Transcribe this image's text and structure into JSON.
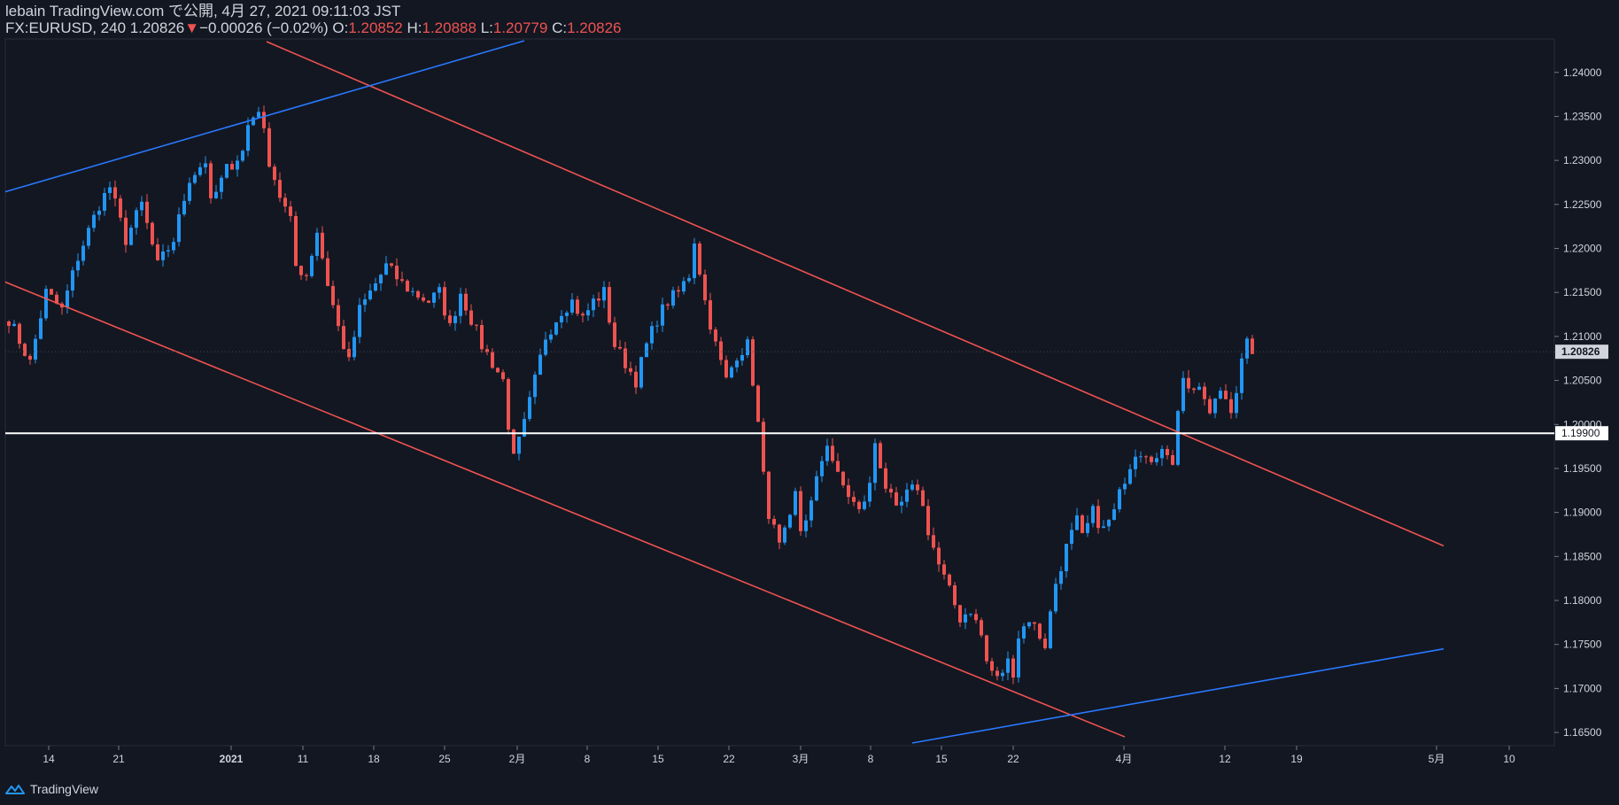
{
  "header": {
    "publish_line": "lebain TradingView.com で公開, 4月 27, 2021 09:11:03 JST",
    "symbol": "FX:EURUSD, 240",
    "last": "1.20826",
    "change_arrow": "▼",
    "change": "−0.00026 (−0.02%)",
    "o_label": "O:",
    "o_value": "1.20852",
    "h_label": "H:",
    "h_value": "1.20888",
    "l_label": "L:",
    "l_value": "1.20779",
    "c_label": "C:",
    "c_value": "1.20826"
  },
  "footer": {
    "brand": "TradingView",
    "icon": "tradingview-logo-icon"
  },
  "colors": {
    "background": "#131722",
    "up": "#2196f3",
    "down": "#ef5350",
    "channel_red": "#ef5350",
    "channel_blue": "#2962ff",
    "level": "#ffffff",
    "axis_text": "#d1d4dc",
    "last_price_label_bg": "#d1d4dc"
  },
  "chart_data": {
    "type": "candlestick",
    "symbol": "EURUSD",
    "timeframe": "240",
    "y_ticks": [
      "1.24000",
      "1.23500",
      "1.23000",
      "1.22500",
      "1.22000",
      "1.21500",
      "1.21000",
      "1.20500",
      "1.20000",
      "1.19500",
      "1.19000",
      "1.18500",
      "1.18000",
      "1.17500",
      "1.17000",
      "1.16500"
    ],
    "ylim": [
      1.1635,
      1.2438
    ],
    "x_ticks": [
      "14",
      "21",
      "2021",
      "11",
      "18",
      "25",
      "2月",
      "8",
      "15",
      "22",
      "3月",
      "8",
      "15",
      "22",
      "4月",
      "12",
      "19",
      "5月",
      "10"
    ],
    "x_tick_bold": [
      false,
      false,
      true,
      false,
      false,
      false,
      false,
      false,
      false,
      false,
      false,
      false,
      false,
      false,
      false,
      false,
      false,
      false,
      false
    ],
    "last_price_label": "1.20826",
    "horizontal_level_label": "1.19900",
    "horizontal_level": 1.199,
    "close_path": [
      [
        0,
        1.212
      ],
      [
        4,
        1.207
      ],
      [
        7,
        1.215
      ],
      [
        10,
        1.213
      ],
      [
        13,
        1.219
      ],
      [
        17,
        1.225
      ],
      [
        19,
        1.227
      ],
      [
        22,
        1.221
      ],
      [
        25,
        1.225
      ],
      [
        28,
        1.218
      ],
      [
        31,
        1.221
      ],
      [
        34,
        1.228
      ],
      [
        37,
        1.23
      ],
      [
        38,
        1.225
      ],
      [
        41,
        1.229
      ],
      [
        44,
        1.231
      ],
      [
        45,
        1.234
      ],
      [
        47,
        1.236
      ],
      [
        49,
        1.23
      ],
      [
        51,
        1.226
      ],
      [
        53,
        1.223
      ],
      [
        54,
        1.218
      ],
      [
        56,
        1.217
      ],
      [
        58,
        1.222
      ],
      [
        60,
        1.216
      ],
      [
        62,
        1.211
      ],
      [
        64,
        1.207
      ],
      [
        66,
        1.213
      ],
      [
        68,
        1.215
      ],
      [
        71,
        1.218
      ],
      [
        74,
        1.216
      ],
      [
        76,
        1.215
      ],
      [
        79,
        1.214
      ],
      [
        81,
        1.215
      ],
      [
        83,
        1.211
      ],
      [
        85,
        1.215
      ],
      [
        87,
        1.212
      ],
      [
        89,
        1.209
      ],
      [
        91,
        1.207
      ],
      [
        93,
        1.205
      ],
      [
        94,
        1.2
      ],
      [
        95,
        1.196
      ],
      [
        97,
        1.2
      ],
      [
        99,
        1.205
      ],
      [
        101,
        1.21
      ],
      [
        104,
        1.213
      ],
      [
        106,
        1.214
      ],
      [
        108,
        1.212
      ],
      [
        110,
        1.214
      ],
      [
        112,
        1.215
      ],
      [
        114,
        1.209
      ],
      [
        116,
        1.207
      ],
      [
        118,
        1.205
      ],
      [
        120,
        1.209
      ],
      [
        122,
        1.212
      ],
      [
        124,
        1.214
      ],
      [
        126,
        1.215
      ],
      [
        128,
        1.217
      ],
      [
        129,
        1.221
      ],
      [
        131,
        1.214
      ],
      [
        133,
        1.209
      ],
      [
        135,
        1.205
      ],
      [
        137,
        1.208
      ],
      [
        139,
        1.209
      ],
      [
        140,
        1.205
      ],
      [
        141,
        1.2
      ],
      [
        142,
        1.194
      ],
      [
        143,
        1.19
      ],
      [
        145,
        1.186
      ],
      [
        147,
        1.189
      ],
      [
        148,
        1.192
      ],
      [
        149,
        1.188
      ],
      [
        151,
        1.191
      ],
      [
        153,
        1.196
      ],
      [
        154,
        1.198
      ],
      [
        156,
        1.194
      ],
      [
        158,
        1.192
      ],
      [
        160,
        1.19
      ],
      [
        162,
        1.193
      ],
      [
        163,
        1.198
      ],
      [
        165,
        1.193
      ],
      [
        167,
        1.19
      ],
      [
        169,
        1.192
      ],
      [
        171,
        1.193
      ],
      [
        173,
        1.188
      ],
      [
        175,
        1.184
      ],
      [
        177,
        1.181
      ],
      [
        179,
        1.178
      ],
      [
        181,
        1.179
      ],
      [
        183,
        1.176
      ],
      [
        184,
        1.173
      ],
      [
        186,
        1.171
      ],
      [
        188,
        1.173
      ],
      [
        189,
        1.172
      ],
      [
        190,
        1.176
      ],
      [
        192,
        1.178
      ],
      [
        194,
        1.176
      ],
      [
        195,
        1.175
      ],
      [
        197,
        1.182
      ],
      [
        199,
        1.186
      ],
      [
        201,
        1.189
      ],
      [
        202,
        1.187
      ],
      [
        204,
        1.19
      ],
      [
        206,
        1.188
      ],
      [
        208,
        1.19
      ],
      [
        210,
        1.194
      ],
      [
        212,
        1.197
      ],
      [
        214,
        1.197
      ],
      [
        216,
        1.196
      ],
      [
        218,
        1.197
      ],
      [
        219,
        1.196
      ],
      [
        220,
        1.202
      ],
      [
        221,
        1.205
      ],
      [
        223,
        1.204
      ],
      [
        225,
        1.203
      ],
      [
        226,
        1.201
      ],
      [
        228,
        1.204
      ],
      [
        230,
        1.202
      ],
      [
        231,
        1.204
      ],
      [
        232,
        1.207
      ],
      [
        233,
        1.209
      ],
      [
        234,
        1.208
      ]
    ],
    "trendlines": [
      {
        "color": "channel_red",
        "points": [
          [
            -2,
            1.2165
          ],
          [
            210,
            1.1645
          ]
        ]
      },
      {
        "color": "channel_red",
        "points": [
          [
            48.5,
            1.2435
          ],
          [
            270,
            1.1862
          ]
        ]
      },
      {
        "color": "channel_blue",
        "points": [
          [
            -2,
            1.2262
          ],
          [
            97,
            1.2436
          ]
        ]
      },
      {
        "color": "channel_blue",
        "points": [
          [
            170,
            1.1638
          ],
          [
            270,
            1.1745
          ]
        ]
      }
    ]
  }
}
